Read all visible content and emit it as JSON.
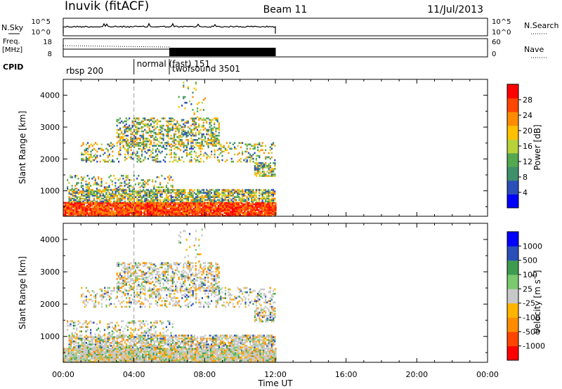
{
  "header": {
    "station": "Inuvik (fitACF)",
    "beam": "Beam 11",
    "date": "11/Jul/2013"
  },
  "left_labels": {
    "nsky": "N.Sky",
    "freq": "Freq.",
    "freq_unit": "[MHz]",
    "cpid": "CPID"
  },
  "right_labels": {
    "nsearch": "N.Search",
    "nave": "Nave"
  },
  "strip_ticks": {
    "noise_left": [
      "10^5",
      "10^0"
    ],
    "noise_right": [
      "10^5",
      "10^0"
    ],
    "freq_left": [
      "18",
      "8"
    ],
    "freq_right": [
      "60",
      "0"
    ]
  },
  "cpid_labels": [
    {
      "text": "rbsp 200",
      "start_hour": 0
    },
    {
      "text": "normal (fast) 151",
      "start_hour": 4
    },
    {
      "text": "twofsound 3501",
      "start_hour": 6
    }
  ],
  "colors": {
    "power_scale": [
      "#0000ff",
      "#2b4fb8",
      "#3f8f6b",
      "#54a84f",
      "#b8d23a",
      "#ffc000",
      "#ff8c00",
      "#ff4500",
      "#ff0000"
    ],
    "velocity_scale": [
      "#ff0000",
      "#ff4500",
      "#ff8c00",
      "#ffb400",
      "#c8c8c8",
      "#7bc96f",
      "#3e9b4f",
      "#2b4fb8",
      "#0000ff"
    ]
  },
  "chart_data": [
    {
      "type": "heatmap",
      "panel": "power",
      "ylabel": "Slant Range [km]",
      "xlabel": "",
      "xlim": [
        0,
        24
      ],
      "ylim": [
        200,
        4500
      ],
      "y_ticks": [
        1000,
        2000,
        3000,
        4000
      ],
      "colorbar": {
        "label": "Power [dB]",
        "ticks": [
          "28",
          "24",
          "20",
          "16",
          "12",
          "8",
          "4"
        ],
        "range": [
          0,
          32
        ]
      },
      "data_hours": [
        0,
        12
      ]
    },
    {
      "type": "heatmap",
      "panel": "velocity",
      "ylabel": "Slant Range [km]",
      "xlabel": "Time UT",
      "xlim": [
        0,
        24
      ],
      "ylim": [
        200,
        4500
      ],
      "y_ticks": [
        1000,
        2000,
        3000,
        4000
      ],
      "x_ticks": [
        "00:00",
        "04:00",
        "08:00",
        "12:00",
        "16:00",
        "20:00",
        "00:00"
      ],
      "colorbar": {
        "label": "Velocity [m s-1]",
        "label_parts": [
          "Velocity [m s",
          "-1",
          "]"
        ],
        "ticks": [
          "1000",
          "500",
          "100",
          "25",
          "-25",
          "-100",
          "-500",
          "-1000"
        ]
      },
      "data_hours": [
        0,
        12
      ]
    }
  ]
}
